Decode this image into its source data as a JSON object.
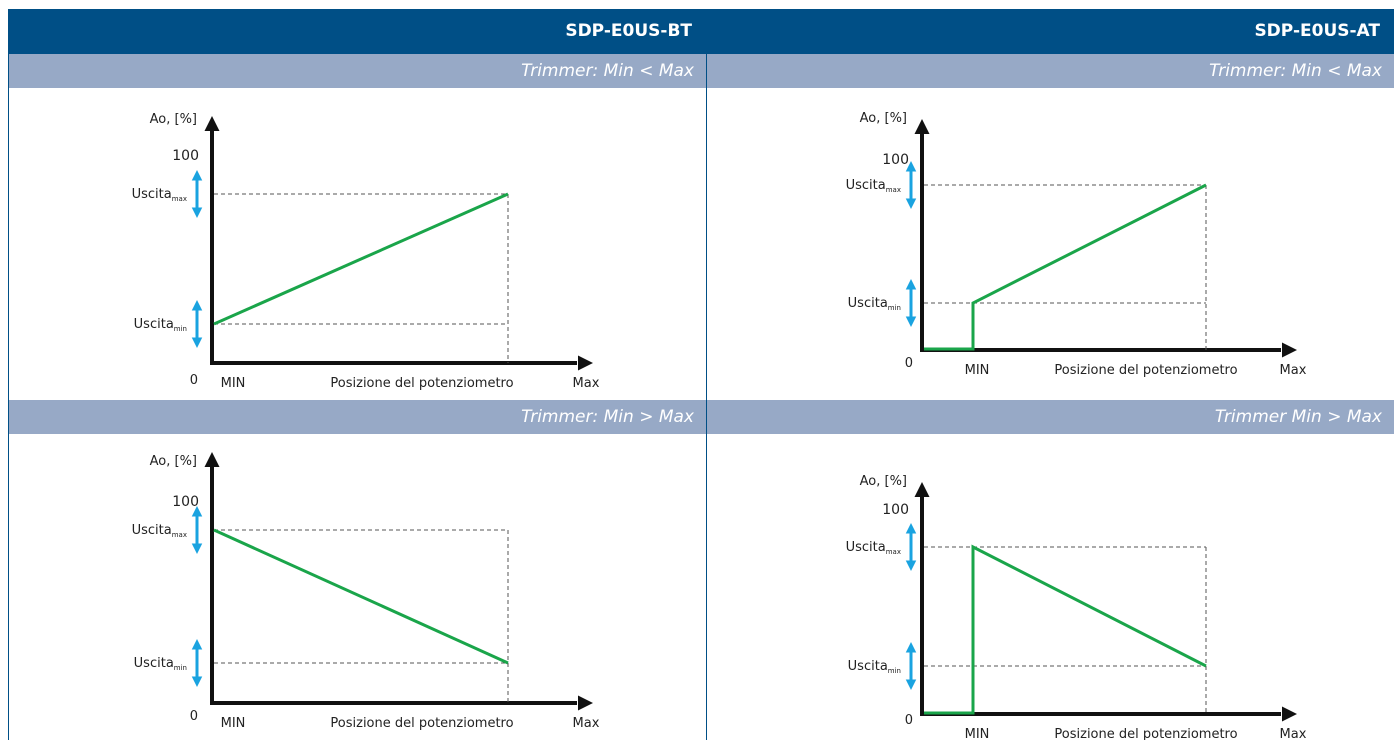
{
  "columns": [
    {
      "header": "SDP-E0US-BT",
      "rows": [
        {
          "subheader": "Trimmer: Min < Max",
          "diagram": {
            "y_axis_label": "Ao, [%]",
            "y_top_label": "100",
            "origin_label": "0",
            "out_max_label": "Uscita",
            "out_max_sub": "max",
            "out_min_label": "Uscita",
            "out_min_sub": "min",
            "x_min_label": "MIN",
            "x_axis_label": "Posizione del potenziometro",
            "x_max_label": "Max"
          }
        },
        {
          "subheader": "Trimmer: Min > Max",
          "diagram": {
            "y_axis_label": "Ao, [%]",
            "y_top_label": "100",
            "origin_label": "0",
            "out_max_label": "Uscita",
            "out_max_sub": "max",
            "out_min_label": "Uscita",
            "out_min_sub": "min",
            "x_min_label": "MIN",
            "x_axis_label": "Posizione del potenziometro",
            "x_max_label": "Max"
          }
        }
      ]
    },
    {
      "header": "SDP-E0US-AT",
      "rows": [
        {
          "subheader": "Trimmer: Min < Max",
          "diagram": {
            "y_axis_label": "Ao, [%]",
            "y_top_label": "100",
            "origin_label": "0",
            "out_max_label": "Uscita",
            "out_max_sub": "max",
            "out_min_label": "Uscita",
            "out_min_sub": "min",
            "x_min_label": "MIN",
            "x_axis_label": "Posizione del potenziometro",
            "x_max_label": "Max"
          }
        },
        {
          "subheader": "Trimmer Min > Max",
          "diagram": {
            "y_axis_label": "Ao, [%]",
            "y_top_label": "100",
            "origin_label": "0",
            "out_max_label": "Uscita",
            "out_max_sub": "max",
            "out_min_label": "Uscita",
            "out_min_sub": "min",
            "x_min_label": "MIN",
            "x_axis_label": "Posizione del potenziometro",
            "x_max_label": "Max"
          }
        }
      ]
    }
  ],
  "colors": {
    "header_bg": "#004f86",
    "subheader_bg": "#97a9c6",
    "curve": "#1aa54a",
    "range_arrow": "#1aa3e0",
    "axis": "#111111",
    "guide": "#555555"
  }
}
